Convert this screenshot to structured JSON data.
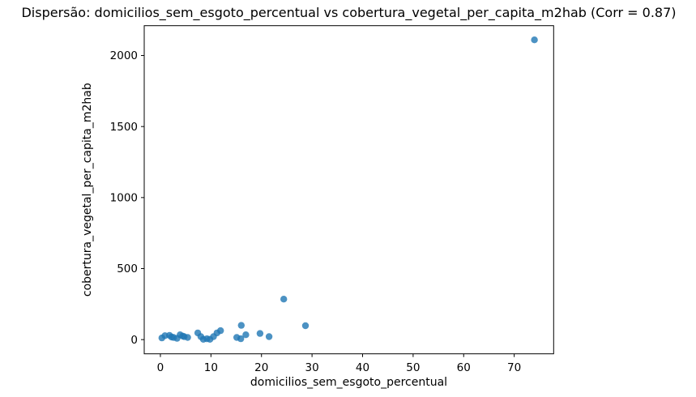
{
  "chart_data": {
    "type": "scatter",
    "title": "Dispersão: domicilios_sem_esgoto_percentual vs cobertura_vegetal_per_capita_m2hab (Corr = 0.87)",
    "xlabel": "domicilios_sem_esgoto_percentual",
    "ylabel": "cobertura_vegetal_per_capita_m2hab",
    "correlation_label": "Corr = 0.87",
    "correlation": 0.87,
    "xlim": [
      -3.2,
      77.8
    ],
    "ylim": [
      -100,
      2210
    ],
    "xticks": [
      0,
      10,
      20,
      30,
      40,
      50,
      60,
      70
    ],
    "yticks": [
      0,
      500,
      1000,
      1500,
      2000
    ],
    "grid": false,
    "legend_position": "none",
    "marker_color": "#1f77b4",
    "marker_opacity": 0.8,
    "marker_radius": 4.2,
    "points": [
      [
        0.3,
        12
      ],
      [
        0.9,
        28
      ],
      [
        1.8,
        30
      ],
      [
        2.2,
        18
      ],
      [
        2.6,
        15
      ],
      [
        3.3,
        9
      ],
      [
        3.9,
        34
      ],
      [
        4.4,
        25
      ],
      [
        4.7,
        21
      ],
      [
        5.4,
        15
      ],
      [
        7.4,
        47
      ],
      [
        8.0,
        21
      ],
      [
        8.5,
        2
      ],
      [
        9.2,
        6
      ],
      [
        9.8,
        2
      ],
      [
        10.5,
        21
      ],
      [
        11.2,
        47
      ],
      [
        11.9,
        63
      ],
      [
        15.1,
        15
      ],
      [
        15.9,
        6
      ],
      [
        16.0,
        100
      ],
      [
        16.9,
        34
      ],
      [
        19.7,
        43
      ],
      [
        21.5,
        21
      ],
      [
        24.4,
        285
      ],
      [
        28.7,
        98
      ],
      [
        74.0,
        2110
      ]
    ]
  }
}
